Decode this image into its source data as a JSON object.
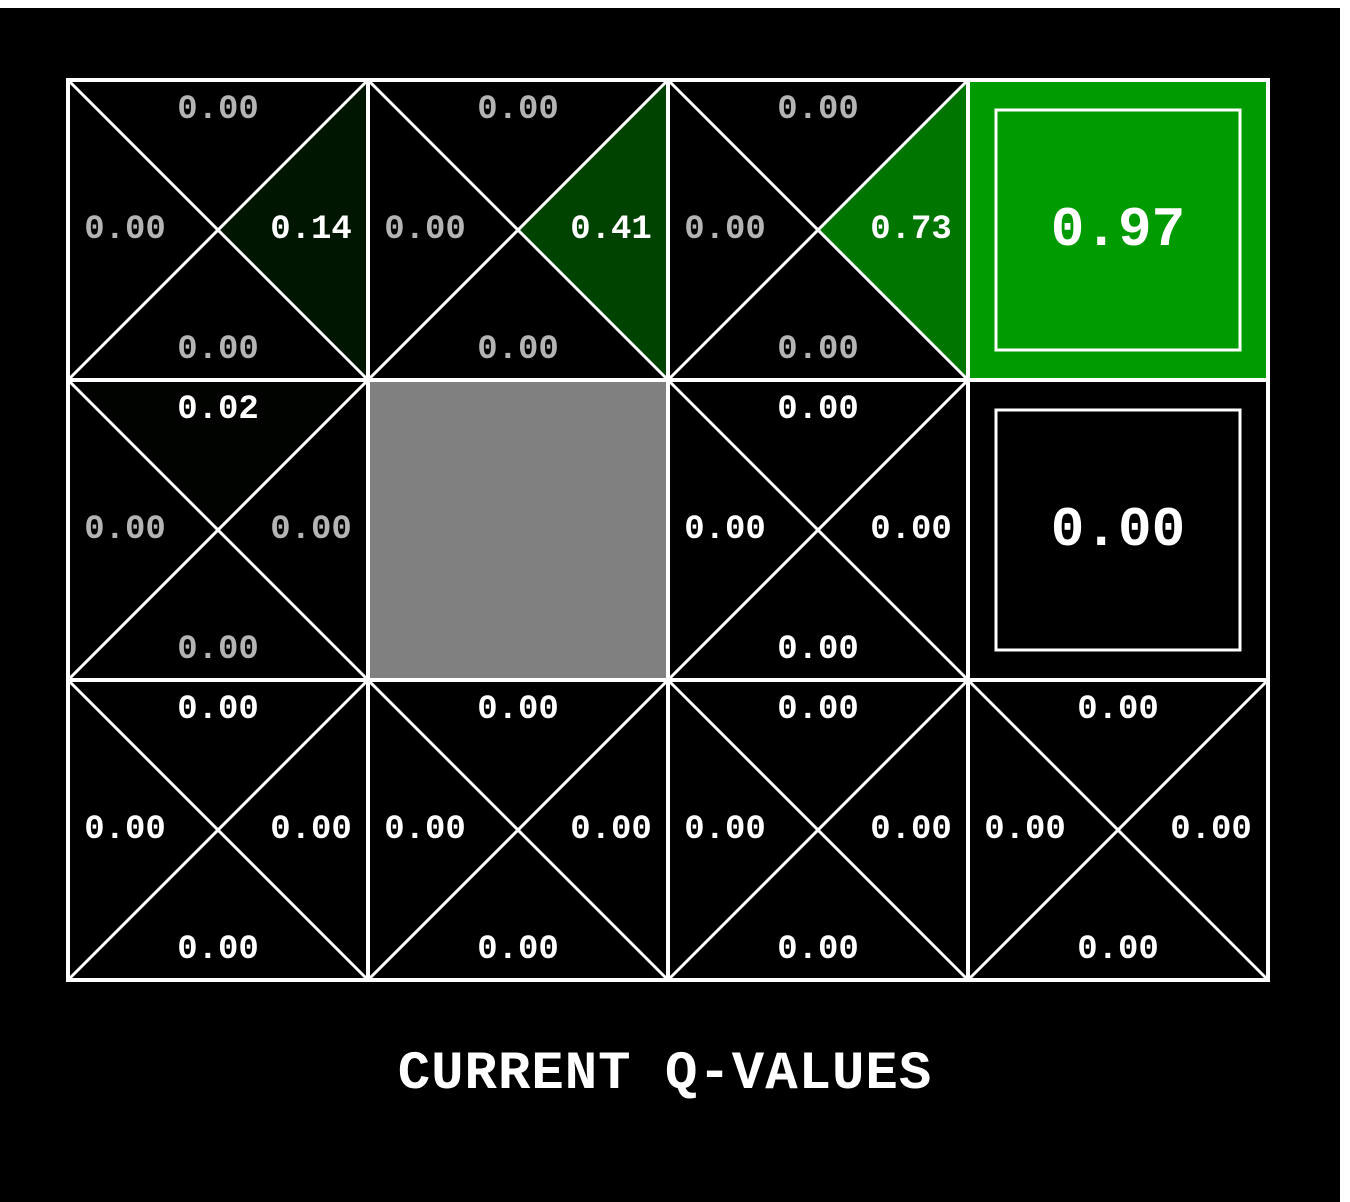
{
  "title": "CURRENT Q-VALUES",
  "colors": {
    "background": "#000000",
    "grid_line": "#ffffff",
    "wall": "#808080",
    "positive": "#00a000",
    "active_text": "#ffffff",
    "inactive_text": "#b4b4b4"
  },
  "grid": {
    "rows": 3,
    "cols": 4,
    "cells": [
      [
        {
          "type": "q",
          "north": "0.00",
          "east": "0.14",
          "south": "0.00",
          "west": "0.00",
          "fill": {
            "east": 0.14
          },
          "dim": true
        },
        {
          "type": "q",
          "north": "0.00",
          "east": "0.41",
          "south": "0.00",
          "west": "0.00",
          "fill": {
            "east": 0.41
          },
          "dim": true
        },
        {
          "type": "q",
          "north": "0.00",
          "east": "0.73",
          "south": "0.00",
          "west": "0.00",
          "fill": {
            "east": 0.73
          },
          "dim": true
        },
        {
          "type": "terminal",
          "value": "0.97",
          "fill": 0.97
        }
      ],
      [
        {
          "type": "q",
          "north": "0.02",
          "east": "0.00",
          "south": "0.00",
          "west": "0.00",
          "fill": {
            "north": 0.02
          },
          "dim": true
        },
        {
          "type": "wall"
        },
        {
          "type": "q",
          "north": "0.00",
          "east": "0.00",
          "south": "0.00",
          "west": "0.00",
          "fill": {},
          "dim": false
        },
        {
          "type": "terminal",
          "value": "0.00",
          "fill": 0.0
        }
      ],
      [
        {
          "type": "q",
          "north": "0.00",
          "east": "0.00",
          "south": "0.00",
          "west": "0.00",
          "fill": {},
          "dim": false
        },
        {
          "type": "q",
          "north": "0.00",
          "east": "0.00",
          "south": "0.00",
          "west": "0.00",
          "fill": {},
          "dim": false
        },
        {
          "type": "q",
          "north": "0.00",
          "east": "0.00",
          "south": "0.00",
          "west": "0.00",
          "fill": {},
          "dim": false
        },
        {
          "type": "q",
          "north": "0.00",
          "east": "0.00",
          "south": "0.00",
          "west": "0.00",
          "fill": {},
          "dim": false
        }
      ]
    ]
  }
}
